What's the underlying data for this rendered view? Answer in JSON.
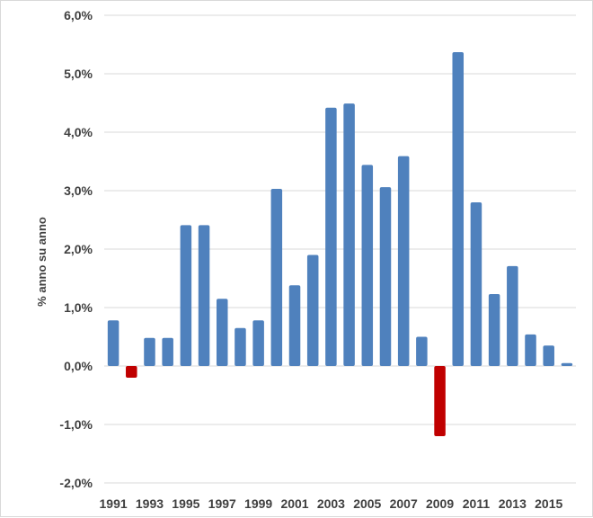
{
  "chart_data": {
    "type": "bar",
    "title": "",
    "xlabel": "",
    "ylabel": "% anno su anno",
    "ylim": [
      -2.0,
      6.0
    ],
    "y_ticks": [
      -2.0,
      -1.0,
      0.0,
      1.0,
      2.0,
      3.0,
      4.0,
      5.0,
      6.0
    ],
    "y_tick_labels": [
      "-2,0%",
      "-1,0%",
      "0,0%",
      "1,0%",
      "2,0%",
      "3,0%",
      "4,0%",
      "5,0%",
      "6,0%"
    ],
    "x_tick_labels": [
      "1991",
      "1993",
      "1995",
      "1997",
      "1999",
      "2001",
      "2003",
      "2005",
      "2007",
      "2009",
      "2011",
      "2013",
      "2015"
    ],
    "grid": true,
    "legend": "none",
    "categories": [
      "1991",
      "1992",
      "1993",
      "1994",
      "1995",
      "1996",
      "1997",
      "1998",
      "1999",
      "2000",
      "2001",
      "2002",
      "2003",
      "2004",
      "2005",
      "2006",
      "2007",
      "2008",
      "2009",
      "2010",
      "2011",
      "2012",
      "2013",
      "2014",
      "2015",
      "2016"
    ],
    "values": [
      0.78,
      -0.2,
      0.48,
      0.48,
      2.41,
      2.41,
      1.15,
      0.65,
      0.78,
      3.03,
      1.38,
      1.9,
      4.42,
      4.49,
      3.44,
      3.06,
      3.59,
      0.5,
      -1.2,
      5.37,
      2.8,
      1.23,
      1.71,
      0.54,
      0.35,
      0.05
    ],
    "colors": {
      "positive": "#4f81bd",
      "negative": "#c00000",
      "grid": "#d9d9d9",
      "text": "#404040"
    }
  }
}
